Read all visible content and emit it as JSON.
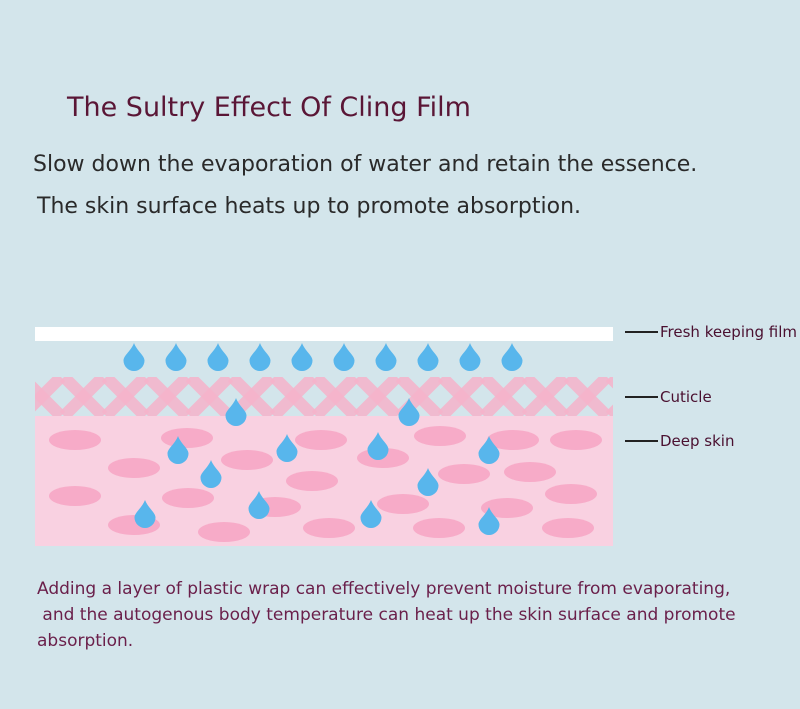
{
  "title": "The Sultry Effect Of Cling Film",
  "subtitle_lines": [
    "Slow down the evaporation of water and retain the essence.",
    "The skin surface heats up to promote absorption."
  ],
  "diagram": {
    "labels": {
      "film": "Fresh keeping film",
      "cuticle": "Cuticle",
      "deep_skin": "Deep skin"
    },
    "colors": {
      "background": "#d3e5eb",
      "film": "#ffffff",
      "drop": "#58b6ec",
      "cuticle_stripe": "#f6b3cb",
      "deep_skin": "#f9d1e1",
      "cell": "#f7abc8"
    }
  },
  "footer_lines": [
    "Adding a layer of plastic wrap can effectively prevent moisture from evaporating,",
    " and the autogenous body temperature can heat up the skin surface and promote",
    "absorption."
  ]
}
